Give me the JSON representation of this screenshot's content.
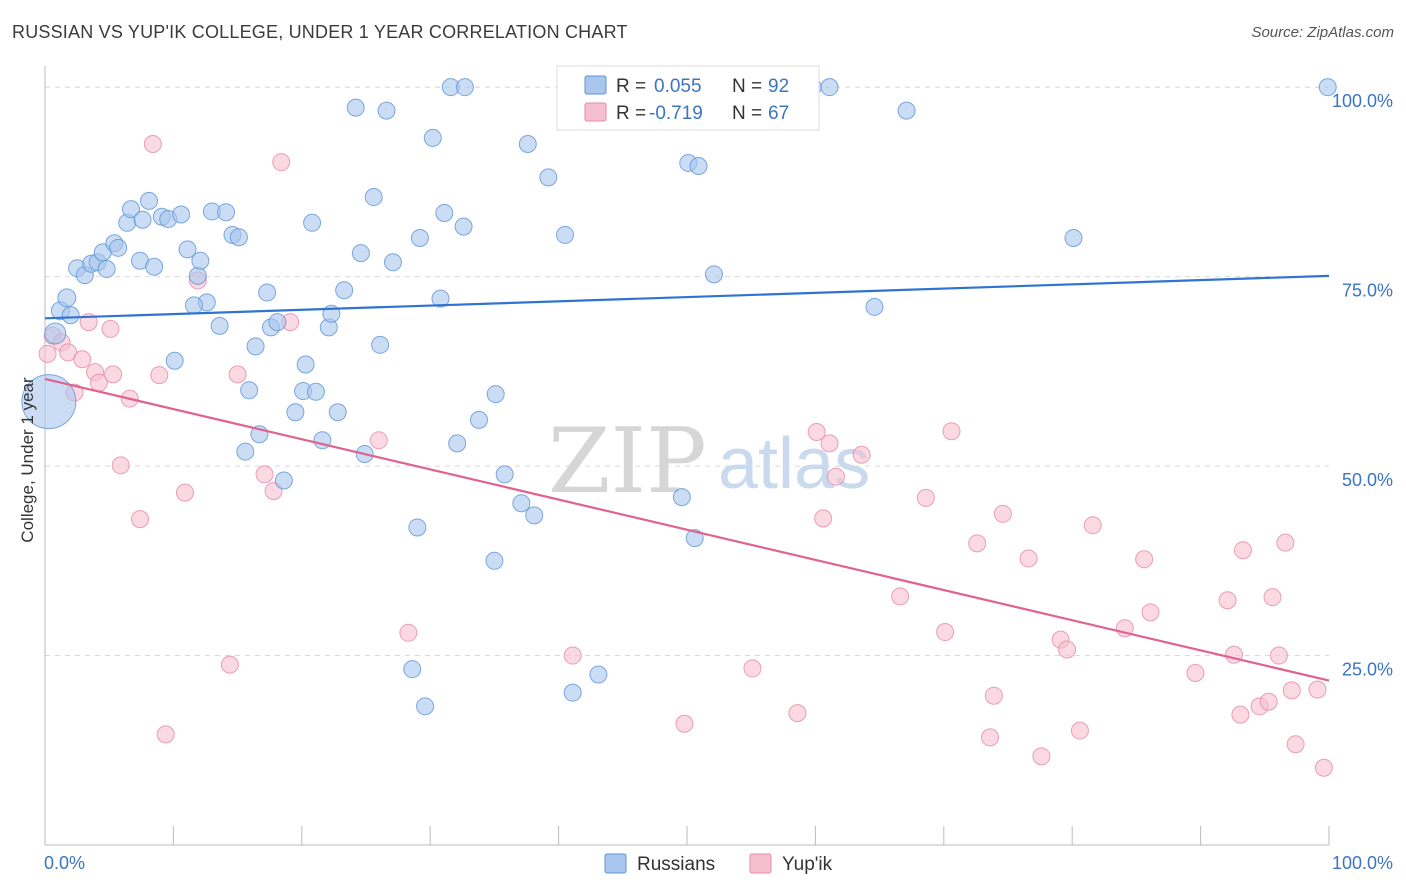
{
  "header": {
    "title": "RUSSIAN VS YUP'IK COLLEGE, UNDER 1 YEAR CORRELATION CHART",
    "source": "Source: ZipAtlas.com"
  },
  "watermark": {
    "zip": "ZIP",
    "atlas": "atlas"
  },
  "legend_box": {
    "rows": [
      {
        "r_label": "R =",
        "r_value": "0.055",
        "n_label": "N =",
        "n_value": "92"
      },
      {
        "r_label": "R =",
        "r_value": "-0.719",
        "n_label": "N =",
        "n_value": "67"
      }
    ]
  },
  "bottom_legend": {
    "items": [
      "Russians",
      "Yup'ik"
    ]
  },
  "colors": {
    "russians_fill": "#a9c7ee",
    "russians_stroke": "#5f93d6",
    "russians_line": "#2f74d0",
    "yupik_fill": "#f6bfd0",
    "yupik_stroke": "#e58aa8",
    "yupik_line": "#e0638f",
    "tick_label": "#3b74c4",
    "grid": "#d9d9d9"
  },
  "chart_data": {
    "type": "scatter",
    "title": "RUSSIAN VS YUP'IK COLLEGE, UNDER 1 YEAR CORRELATION CHART",
    "xlabel": "",
    "ylabel": "College, Under 1 year",
    "xlim": [
      0,
      100
    ],
    "ylim": [
      0,
      102
    ],
    "x_tick_labels": [
      "0.0%",
      "100.0%"
    ],
    "y_ticks": [
      25,
      50,
      75,
      100
    ],
    "y_tick_labels": [
      "25.0%",
      "50.0%",
      "75.0%",
      "100.0%"
    ],
    "grid": "horizontal dashed",
    "legend_position": "bottom-center",
    "series": [
      {
        "name": "Russians",
        "r": 0.055,
        "n": 92,
        "trend": {
          "x": [
            0,
            100
          ],
          "y": [
            69.5,
            75.1
          ]
        },
        "points": [
          [
            0.3,
            58.5,
            36
          ],
          [
            0.8,
            67.5,
            14
          ],
          [
            1.2,
            70.5,
            12
          ],
          [
            1.7,
            72.2,
            12
          ],
          [
            2.0,
            69.9,
            10
          ],
          [
            2.5,
            76.1,
            10
          ],
          [
            3.1,
            75.2,
            10
          ],
          [
            3.6,
            76.7,
            10
          ],
          [
            4.1,
            76.9,
            10
          ],
          [
            4.8,
            76.0,
            10
          ],
          [
            4.5,
            78.2,
            10
          ],
          [
            5.4,
            79.4,
            10
          ],
          [
            5.7,
            78.8,
            10
          ],
          [
            6.4,
            82.1,
            10
          ],
          [
            6.7,
            83.9,
            10
          ],
          [
            7.6,
            82.5,
            10
          ],
          [
            8.1,
            85.0,
            10
          ],
          [
            7.4,
            77.1,
            10
          ],
          [
            8.5,
            76.3,
            10
          ],
          [
            9.1,
            82.9,
            10
          ],
          [
            9.6,
            82.6,
            10
          ],
          [
            10.6,
            83.2,
            10
          ],
          [
            11.1,
            78.6,
            10
          ],
          [
            11.9,
            75.1,
            10
          ],
          [
            12.1,
            77.1,
            10
          ],
          [
            12.6,
            71.6,
            10
          ],
          [
            11.6,
            71.2,
            10
          ],
          [
            13.0,
            83.6,
            10
          ],
          [
            14.1,
            83.5,
            10
          ],
          [
            14.6,
            80.5,
            10
          ],
          [
            15.1,
            80.2,
            10
          ],
          [
            13.6,
            68.5,
            10
          ],
          [
            10.1,
            63.9,
            10
          ],
          [
            15.9,
            60.0,
            10
          ],
          [
            16.4,
            65.8,
            10
          ],
          [
            17.3,
            72.9,
            10
          ],
          [
            17.6,
            68.3,
            10
          ],
          [
            18.1,
            69.0,
            10
          ],
          [
            16.7,
            54.2,
            10
          ],
          [
            15.6,
            51.9,
            10
          ],
          [
            18.6,
            48.1,
            10
          ],
          [
            19.5,
            57.1,
            10
          ],
          [
            20.1,
            59.9,
            10
          ],
          [
            20.3,
            63.4,
            10
          ],
          [
            20.8,
            82.1,
            10
          ],
          [
            21.1,
            59.8,
            10
          ],
          [
            21.6,
            53.4,
            10
          ],
          [
            22.1,
            68.3,
            10
          ],
          [
            22.3,
            70.1,
            10
          ],
          [
            22.8,
            57.1,
            10
          ],
          [
            23.3,
            73.2,
            10
          ],
          [
            24.2,
            97.3,
            10
          ],
          [
            24.6,
            78.1,
            10
          ],
          [
            24.9,
            51.6,
            10
          ],
          [
            25.6,
            85.5,
            10
          ],
          [
            26.1,
            66.0,
            10
          ],
          [
            26.6,
            96.9,
            10
          ],
          [
            27.1,
            76.9,
            10
          ],
          [
            29.0,
            41.9,
            10
          ],
          [
            29.2,
            80.1,
            10
          ],
          [
            30.2,
            93.3,
            10
          ],
          [
            30.8,
            72.1,
            10
          ],
          [
            31.1,
            83.4,
            10
          ],
          [
            31.6,
            100.0,
            10
          ],
          [
            32.1,
            53.0,
            10
          ],
          [
            32.6,
            81.6,
            10
          ],
          [
            32.7,
            100.0,
            10
          ],
          [
            33.8,
            56.1,
            10
          ],
          [
            35.1,
            59.5,
            10
          ],
          [
            35.0,
            37.5,
            10
          ],
          [
            35.8,
            48.9,
            10
          ],
          [
            37.1,
            45.1,
            10
          ],
          [
            38.1,
            43.5,
            10
          ],
          [
            37.6,
            92.5,
            10
          ],
          [
            39.2,
            88.1,
            10
          ],
          [
            40.5,
            80.5,
            10
          ],
          [
            41.1,
            20.1,
            10
          ],
          [
            43.1,
            22.5,
            10
          ],
          [
            47.1,
            100.0,
            10
          ],
          [
            49.6,
            45.9,
            10
          ],
          [
            50.1,
            90.0,
            10
          ],
          [
            50.6,
            40.5,
            10
          ],
          [
            50.9,
            89.6,
            10
          ],
          [
            52.1,
            75.3,
            10
          ],
          [
            59.8,
            100.0,
            10
          ],
          [
            61.1,
            100.0,
            10
          ],
          [
            64.6,
            71.0,
            10
          ],
          [
            67.1,
            96.9,
            10
          ],
          [
            80.1,
            80.1,
            10
          ],
          [
            99.9,
            100.0,
            10
          ],
          [
            28.6,
            23.2,
            10
          ],
          [
            29.6,
            18.3,
            10
          ]
        ]
      },
      {
        "name": "Yup'ik",
        "r": -0.719,
        "n": 67,
        "trend": {
          "x": [
            0,
            100
          ],
          "y": [
            61.5,
            21.7
          ]
        },
        "points": [
          [
            0.2,
            64.8,
            10
          ],
          [
            0.6,
            67.2,
            10
          ],
          [
            1.3,
            66.3,
            10
          ],
          [
            1.8,
            65.0,
            10
          ],
          [
            2.3,
            59.7,
            10
          ],
          [
            2.9,
            64.1,
            10
          ],
          [
            3.4,
            69.0,
            10
          ],
          [
            3.9,
            62.4,
            10
          ],
          [
            4.2,
            61.0,
            10
          ],
          [
            5.1,
            68.1,
            10
          ],
          [
            5.3,
            62.1,
            10
          ],
          [
            5.9,
            50.1,
            10
          ],
          [
            6.6,
            58.9,
            10
          ],
          [
            7.4,
            43.0,
            10
          ],
          [
            8.4,
            92.5,
            10
          ],
          [
            8.9,
            62.0,
            10
          ],
          [
            9.4,
            14.6,
            10
          ],
          [
            10.9,
            46.5,
            10
          ],
          [
            11.9,
            74.5,
            10
          ],
          [
            14.4,
            23.8,
            10
          ],
          [
            15.0,
            62.1,
            10
          ],
          [
            17.1,
            48.9,
            10
          ],
          [
            17.8,
            46.7,
            10
          ],
          [
            18.4,
            90.1,
            10
          ],
          [
            19.1,
            69.0,
            10
          ],
          [
            26.0,
            53.4,
            10
          ],
          [
            28.3,
            28.0,
            10
          ],
          [
            41.1,
            25.0,
            10
          ],
          [
            49.8,
            16.0,
            10
          ],
          [
            55.1,
            23.3,
            10
          ],
          [
            58.6,
            17.4,
            10
          ],
          [
            60.1,
            54.5,
            10
          ],
          [
            60.6,
            43.1,
            10
          ],
          [
            61.1,
            53.0,
            10
          ],
          [
            61.6,
            48.6,
            10
          ],
          [
            63.6,
            51.5,
            10
          ],
          [
            66.6,
            32.8,
            10
          ],
          [
            68.6,
            45.8,
            10
          ],
          [
            70.1,
            28.1,
            10
          ],
          [
            70.6,
            54.6,
            10
          ],
          [
            72.6,
            39.8,
            10
          ],
          [
            73.6,
            14.2,
            10
          ],
          [
            73.9,
            19.7,
            10
          ],
          [
            74.6,
            43.7,
            10
          ],
          [
            76.6,
            37.8,
            10
          ],
          [
            77.6,
            11.7,
            10
          ],
          [
            79.1,
            27.1,
            10
          ],
          [
            79.6,
            25.8,
            10
          ],
          [
            80.6,
            15.1,
            10
          ],
          [
            81.6,
            42.2,
            10
          ],
          [
            84.1,
            28.6,
            10
          ],
          [
            85.6,
            37.7,
            10
          ],
          [
            86.1,
            30.7,
            10
          ],
          [
            89.6,
            22.7,
            10
          ],
          [
            92.1,
            32.3,
            10
          ],
          [
            92.6,
            25.1,
            10
          ],
          [
            93.1,
            17.2,
            10
          ],
          [
            93.3,
            38.9,
            10
          ],
          [
            94.6,
            18.3,
            10
          ],
          [
            95.3,
            18.9,
            10
          ],
          [
            95.6,
            32.7,
            10
          ],
          [
            96.1,
            25.0,
            10
          ],
          [
            96.6,
            39.9,
            10
          ],
          [
            97.1,
            20.4,
            10
          ],
          [
            97.4,
            13.3,
            10
          ],
          [
            99.1,
            20.5,
            10
          ],
          [
            99.6,
            10.2,
            10
          ]
        ]
      }
    ]
  }
}
